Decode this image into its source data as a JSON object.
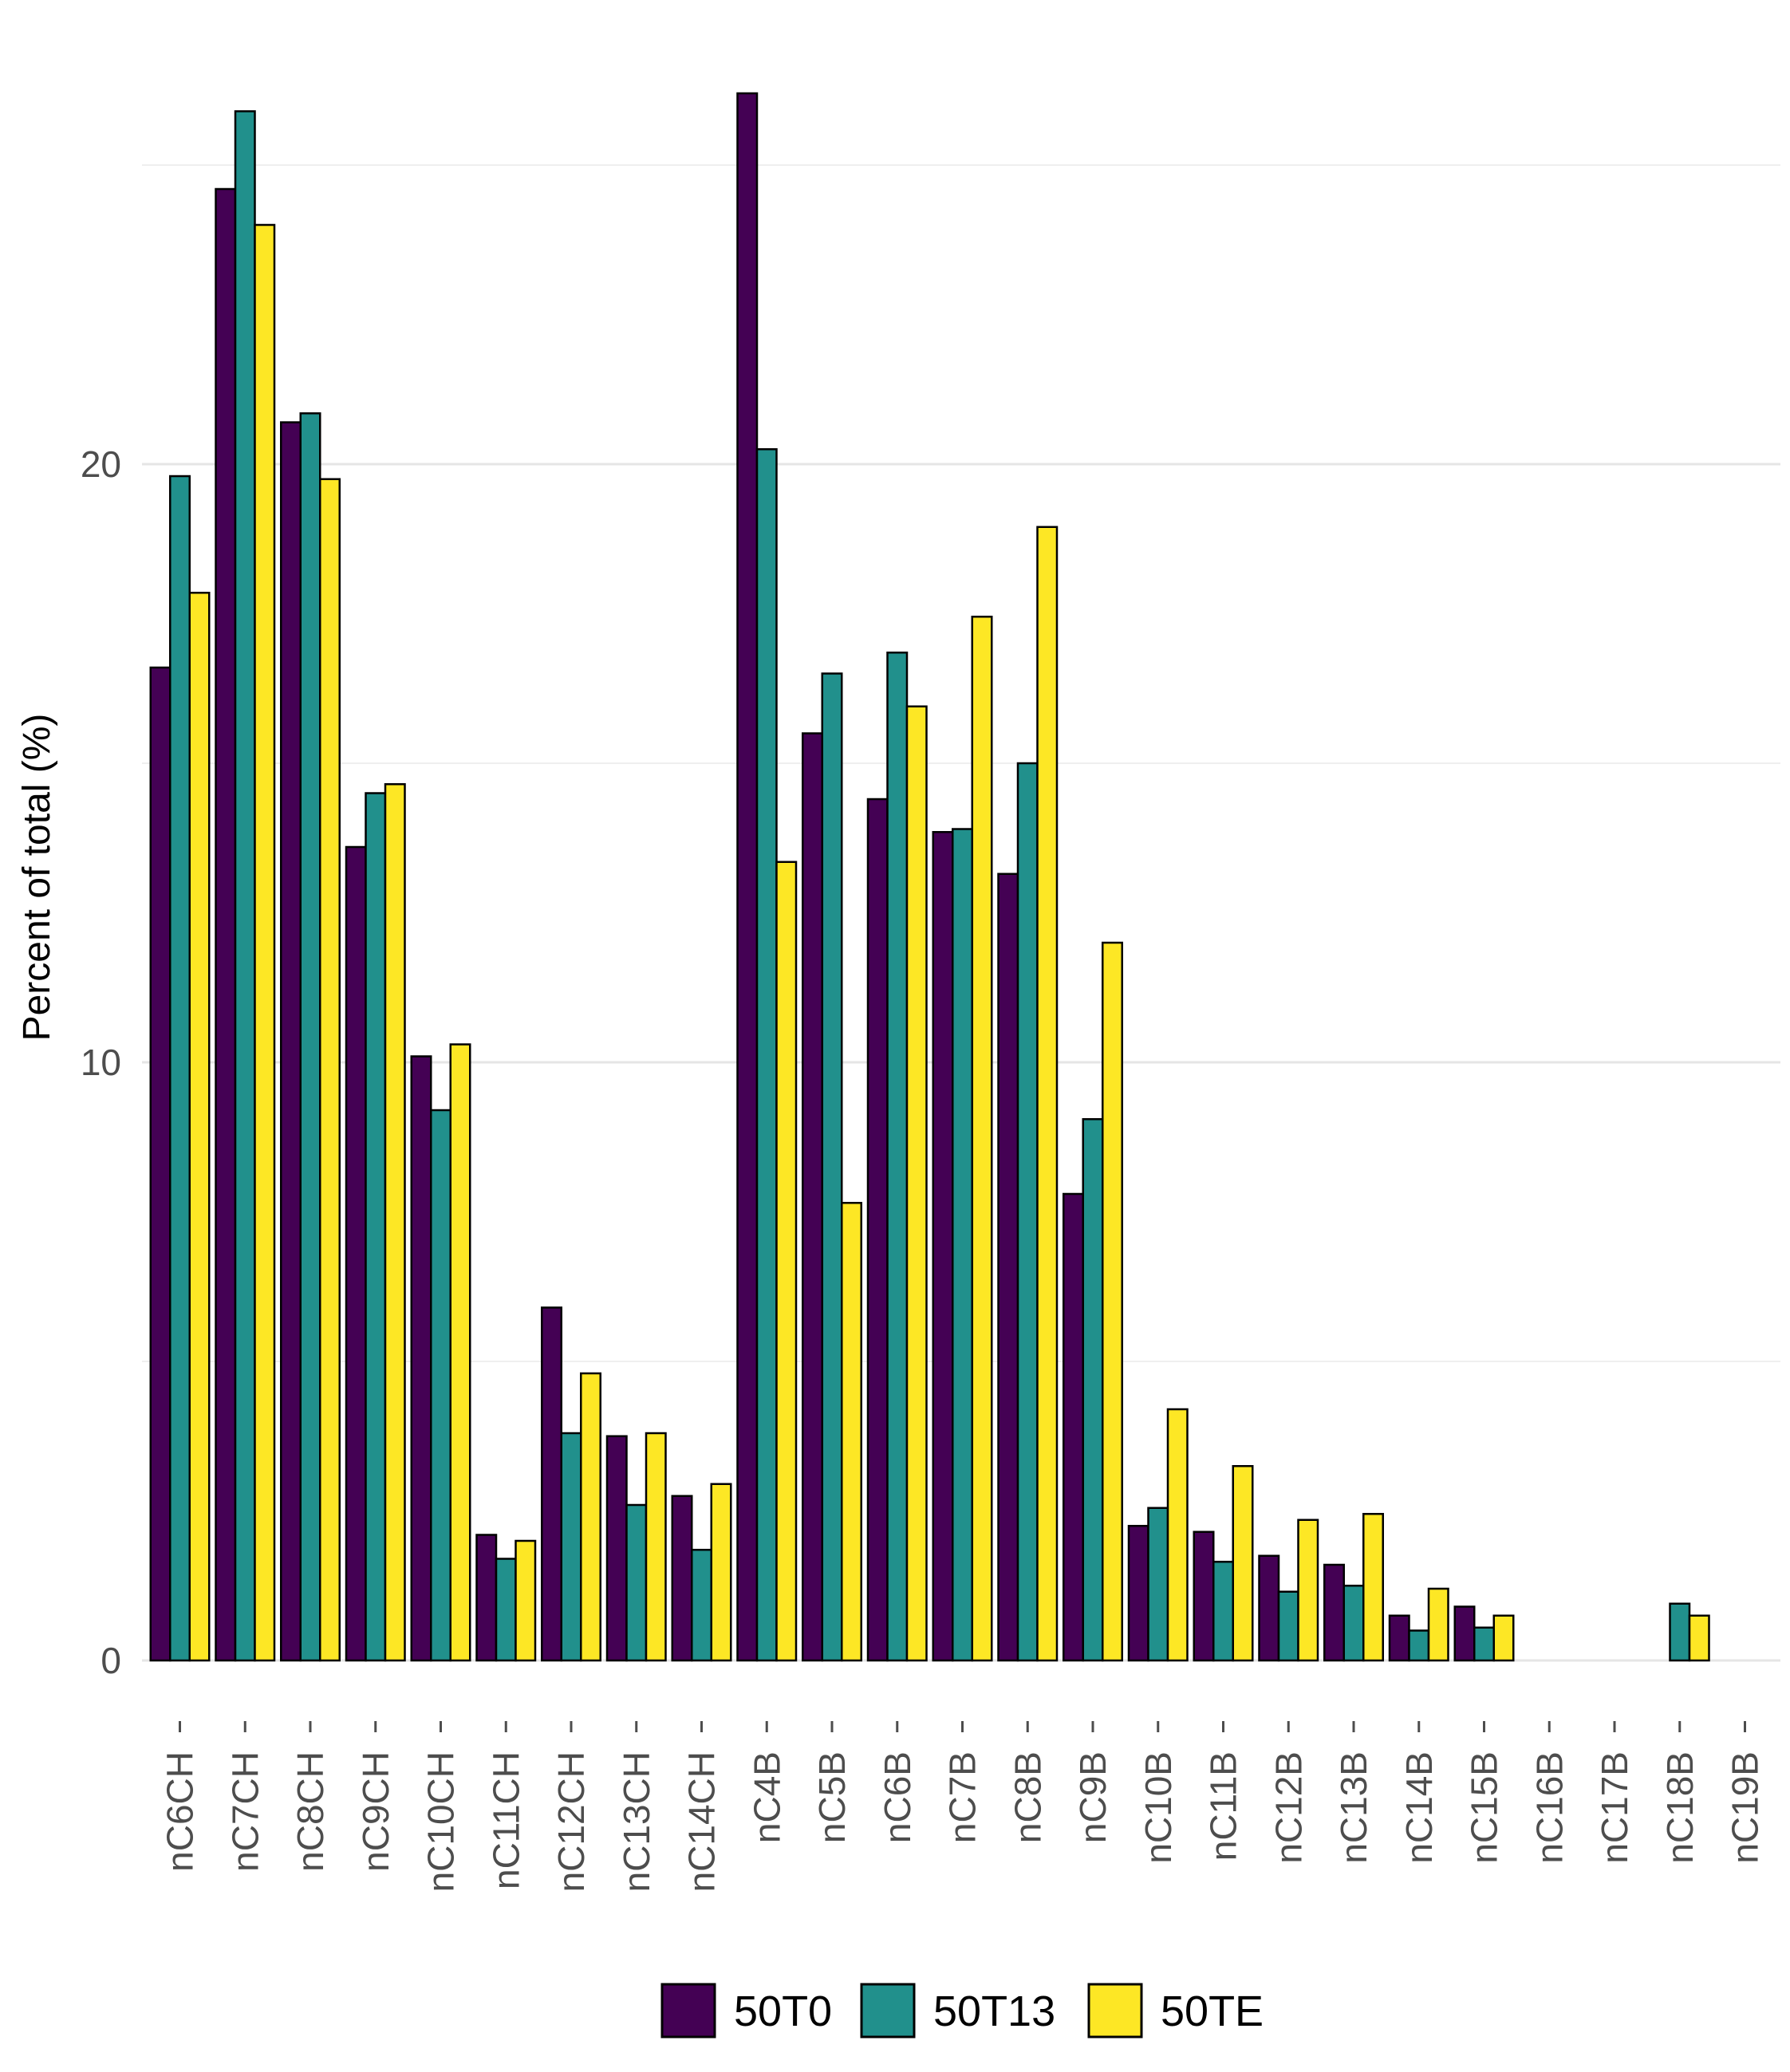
{
  "chart_data": {
    "type": "bar",
    "title": "",
    "xlabel": "",
    "ylabel": "Percent of total (%)",
    "ylim": [
      -0.8,
      27.5
    ],
    "yticks": [
      0,
      10,
      20
    ],
    "grid": "horizontal",
    "legend_position": "bottom",
    "categories": [
      "nC6CH",
      "nC7CH",
      "nC8CH",
      "nC9CH",
      "nC10CH",
      "nC11CH",
      "nC12CH",
      "nC13CH",
      "nC14CH",
      "nC4B",
      "nC5B",
      "nC6B",
      "nC7B",
      "nC8B",
      "nC9B",
      "nC10B",
      "nC11B",
      "nC12B",
      "nC13B",
      "nC14B",
      "nC15B",
      "nC16B",
      "nC17B",
      "nC18B",
      "nC19B"
    ],
    "series": [
      {
        "name": "50T0",
        "color": "#440154",
        "values": [
          16.6,
          24.6,
          20.7,
          13.6,
          10.1,
          2.1,
          5.9,
          3.75,
          2.75,
          26.2,
          15.5,
          14.4,
          13.85,
          13.15,
          7.8,
          2.25,
          2.15,
          1.75,
          1.6,
          0.75,
          0.9,
          0,
          0,
          0,
          0
        ]
      },
      {
        "name": "50T13",
        "color": "#21908C",
        "values": [
          19.8,
          25.9,
          20.85,
          14.5,
          9.2,
          1.7,
          3.8,
          2.6,
          1.85,
          20.25,
          16.5,
          16.85,
          13.9,
          15.0,
          9.05,
          2.55,
          1.65,
          1.15,
          1.25,
          0.5,
          0.55,
          0,
          0,
          0.95,
          0
        ]
      },
      {
        "name": "50TE",
        "color": "#FDE725",
        "values": [
          17.85,
          24.0,
          19.75,
          14.65,
          10.3,
          2.0,
          4.8,
          3.8,
          2.95,
          13.35,
          7.65,
          15.95,
          17.45,
          18.95,
          12.0,
          4.2,
          3.25,
          2.35,
          2.45,
          1.2,
          0.75,
          0,
          0,
          0.75,
          0
        ]
      }
    ]
  }
}
